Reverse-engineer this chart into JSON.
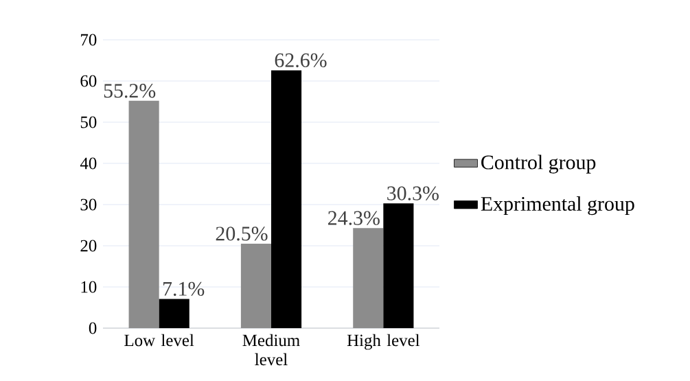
{
  "chart_data": {
    "type": "bar",
    "categories": [
      "Low level",
      "Medium level",
      "High level"
    ],
    "series": [
      {
        "name": "Control group",
        "color": "#8c8c8c",
        "values": [
          55.2,
          20.5,
          24.3
        ],
        "value_labels": [
          "55.2%",
          "20.5%",
          "24.3%"
        ]
      },
      {
        "name": "Exprimental group",
        "color": "#000000",
        "values": [
          7.1,
          62.6,
          30.3
        ],
        "value_labels": [
          "7.1%",
          "62.6%",
          "30.3%"
        ]
      }
    ],
    "ylim": [
      0,
      70
    ],
    "yticks": [
      0,
      10,
      20,
      30,
      40,
      50,
      60,
      70
    ],
    "grid": "y",
    "legend": "right"
  }
}
